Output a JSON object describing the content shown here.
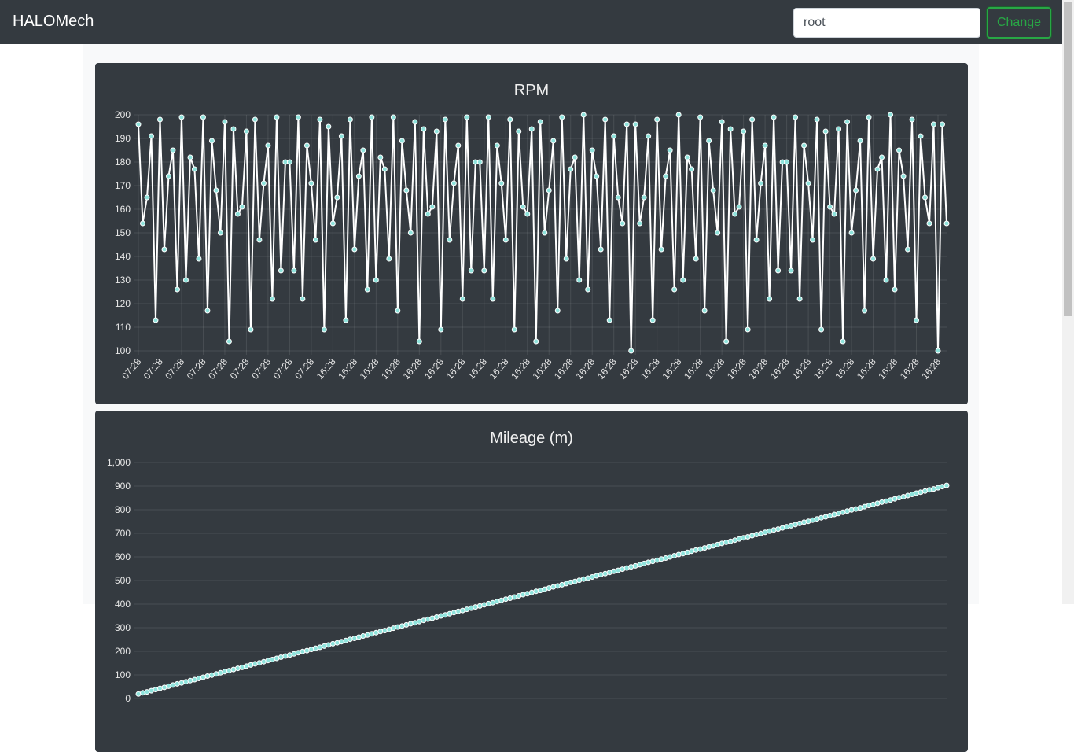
{
  "header": {
    "brand": "HALOMech",
    "input_value": "root",
    "button": "Change"
  },
  "chart_data": [
    {
      "type": "line",
      "title": "RPM",
      "color": "#ffffff",
      "point_color": "#8fe3dc",
      "grid": true,
      "ylim": [
        100,
        200
      ],
      "yticks": [
        100,
        110,
        120,
        130,
        140,
        150,
        160,
        170,
        180,
        190,
        200
      ],
      "categories": [
        "07:28",
        null,
        null,
        null,
        null,
        "07:28",
        null,
        null,
        null,
        null,
        "07:28",
        null,
        null,
        null,
        null,
        "07:28",
        null,
        null,
        null,
        null,
        "07:28",
        null,
        null,
        null,
        null,
        "07:28",
        null,
        null,
        null,
        null,
        "07:28",
        null,
        null,
        null,
        null,
        "07:28",
        null,
        null,
        null,
        null,
        "07:28",
        null,
        null,
        null,
        null,
        "16:28",
        null,
        null,
        null,
        null,
        "16:28",
        null,
        null,
        null,
        null,
        "16:28",
        null,
        null,
        null,
        null,
        "16:28",
        null,
        null,
        null,
        null,
        "16:28",
        null,
        null,
        null,
        null,
        "16:28",
        null,
        null,
        null,
        null,
        "16:28",
        null,
        null,
        null,
        null,
        "16:28",
        null,
        null,
        null,
        null,
        "16:28",
        null,
        null,
        null,
        null,
        "16:28",
        null,
        null,
        null,
        null,
        "16:28",
        null,
        null,
        null,
        null,
        "16:28",
        null,
        null,
        null,
        null,
        "16:28",
        null,
        null,
        null,
        null,
        "16:28",
        null,
        null,
        null,
        null,
        "16:28",
        null,
        null,
        null,
        null,
        "16:28",
        null,
        null,
        null,
        null,
        "16:28",
        null,
        null,
        null,
        null,
        "16:28",
        null,
        null,
        null,
        null,
        "16:28",
        null,
        null,
        null,
        null,
        "16:28",
        null,
        null,
        null,
        null,
        "16:28",
        null,
        null,
        null,
        null,
        "16:28",
        null,
        null,
        null,
        null,
        "16:28",
        null,
        null,
        null,
        null,
        "16:28",
        null,
        null,
        null,
        null,
        "16:28",
        null,
        null,
        null,
        null,
        "16:28",
        null,
        null,
        null,
        null,
        "16:28",
        null,
        null,
        null,
        null,
        "16:28",
        null,
        null,
        null,
        null,
        "16:28",
        null,
        null
      ],
      "values": [
        196,
        154,
        165,
        191,
        113,
        198,
        143,
        174,
        185,
        126,
        199,
        130,
        182,
        177,
        139,
        199,
        117,
        189,
        168,
        150,
        197,
        104,
        194,
        158,
        161,
        193,
        109,
        198,
        147,
        171,
        187,
        122,
        199,
        134,
        180,
        180,
        134,
        199,
        122,
        187,
        171,
        147,
        198,
        109,
        195,
        154,
        165,
        191,
        113,
        198,
        143,
        174,
        185,
        126,
        199,
        130,
        182,
        177,
        139,
        199,
        117,
        189,
        168,
        150,
        197,
        104,
        194,
        158,
        161,
        193,
        109,
        198,
        147,
        171,
        187,
        122,
        199,
        134,
        180,
        180,
        134,
        199,
        122,
        187,
        171,
        147,
        198,
        109,
        193,
        161,
        158,
        194,
        104,
        197,
        150,
        168,
        189,
        117,
        199,
        139,
        177,
        182,
        130,
        200,
        126,
        185,
        174,
        143,
        198,
        113,
        191,
        165,
        154,
        196,
        100,
        196,
        154,
        165,
        191,
        113,
        198,
        143,
        174,
        185,
        126,
        200,
        130,
        182,
        177,
        139,
        199,
        117,
        189,
        168,
        150,
        197,
        104,
        194,
        158,
        161,
        193,
        109,
        198,
        147,
        171,
        187,
        122,
        199,
        134,
        180,
        180,
        134,
        199,
        122,
        187,
        171,
        147,
        198,
        109,
        193,
        161,
        158,
        194,
        104,
        197,
        150,
        168,
        189,
        117,
        199,
        139,
        177,
        182,
        130,
        200,
        126,
        185,
        174,
        143,
        198,
        113,
        191,
        165,
        154,
        196,
        100,
        196,
        154
      ]
    },
    {
      "type": "line",
      "title": "Mileage (m)",
      "color": "#ffffff",
      "point_color": "#8fe3dc",
      "grid": true,
      "ylim": [
        0,
        1000
      ],
      "yticks": [
        0,
        100,
        200,
        300,
        400,
        500,
        600,
        700,
        800,
        900,
        {
          "value": 1000,
          "label": "1,000"
        }
      ],
      "values": [
        19,
        24,
        28,
        33,
        38,
        43,
        47,
        52,
        57,
        62,
        66,
        71,
        76,
        80,
        85,
        90,
        95,
        99,
        104,
        109,
        114,
        118,
        123,
        128,
        132,
        137,
        142,
        147,
        151,
        156,
        161,
        165,
        170,
        175,
        180,
        184,
        189,
        194,
        199,
        203,
        208,
        213,
        217,
        222,
        227,
        232,
        236,
        241,
        246,
        251,
        255,
        260,
        265,
        269,
        274,
        279,
        284,
        288,
        293,
        298,
        303,
        307,
        312,
        317,
        321,
        326,
        331,
        336,
        340,
        345,
        350,
        354,
        359,
        364,
        369,
        373,
        378,
        383,
        388,
        392,
        397,
        402,
        406,
        411,
        416,
        421,
        425,
        430,
        435,
        440,
        444,
        449,
        454,
        458,
        463,
        468,
        473,
        477,
        482,
        487,
        492,
        496,
        501,
        506,
        510,
        515,
        520,
        525,
        529,
        534,
        539,
        543,
        548,
        553,
        558,
        562,
        567,
        572,
        577,
        581,
        586,
        591,
        595,
        600,
        605,
        610,
        614,
        619,
        624,
        629,
        633,
        638,
        643,
        647,
        652,
        657,
        662,
        666,
        671,
        676,
        681,
        685,
        690,
        695,
        699,
        704,
        709,
        714,
        718,
        723,
        728,
        732,
        737,
        742,
        747,
        751,
        756,
        761,
        766,
        770,
        775,
        780,
        784,
        789,
        794,
        799,
        803,
        808,
        813,
        818,
        822,
        827,
        832,
        836,
        841,
        846,
        851,
        855,
        860,
        865,
        870,
        874,
        879,
        884,
        888,
        893,
        898,
        903
      ]
    }
  ]
}
